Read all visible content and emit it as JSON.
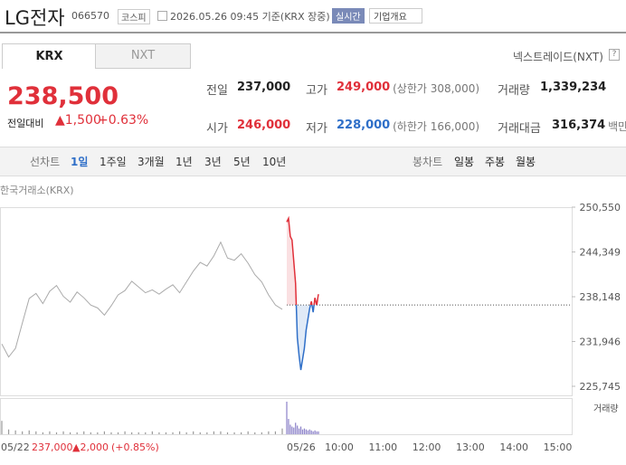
{
  "header": {
    "title": "LG전자",
    "code": "066570",
    "market": "코스피",
    "timestamp": "2026.05.26 09:45 기준(KRX 장중)",
    "realtime": "실시간",
    "company": "기업개요"
  },
  "tabs": [
    "KRX",
    "NXT"
  ],
  "nxt_link": "넥스트레이드(NXT)",
  "quote": {
    "price": "238,500",
    "change_label": "전일대비",
    "change": "▲1,500",
    "change_pct": "+0.63%"
  },
  "stats": [
    {
      "label": "전일",
      "value": "237,000",
      "color": "#222"
    },
    {
      "label": "고가",
      "value": "249,000",
      "note": "(상한가 308,000)",
      "color": "#e0303a"
    },
    {
      "label": "거래량",
      "value": "1,339,234",
      "color": "#222"
    },
    {
      "label": "시가",
      "value": "246,000",
      "color": "#e0303a"
    },
    {
      "label": "저가",
      "value": "228,000",
      "note": "(하한가 166,000)",
      "color": "#2f6fc8"
    },
    {
      "label": "거래대금",
      "value": "316,374",
      "note": "백만",
      "color": "#222"
    }
  ],
  "periods": {
    "line_label": "선차트",
    "line": [
      "1일",
      "1주일",
      "3개월",
      "1년",
      "3년",
      "5년",
      "10년"
    ],
    "candle_label": "봉차트",
    "candle": [
      "일봉",
      "주봉",
      "월봉"
    ]
  },
  "chart_data": {
    "type": "line",
    "source": "한국거래소(KRX)",
    "ylim": [
      225745,
      250550
    ],
    "yticks": [
      {
        "value": 250550,
        "label": "250,550"
      },
      {
        "value": 244349,
        "label": "244,349"
      },
      {
        "value": 238148,
        "label": "238,148"
      },
      {
        "value": 231946,
        "label": "231,946"
      },
      {
        "value": 225745,
        "label": "225,745"
      }
    ],
    "baseline": 237000,
    "series": [
      {
        "name": "05/22",
        "color": "#aaaaaa",
        "values": [
          231600,
          229800,
          231000,
          234500,
          237900,
          238600,
          237200,
          238900,
          239700,
          238200,
          237400,
          238800,
          238000,
          237000,
          236600,
          235600,
          236900,
          238400,
          239000,
          240300,
          239500,
          238700,
          239100,
          238500,
          239200,
          239800,
          238700,
          240200,
          241700,
          242900,
          242400,
          243800,
          245700,
          243500,
          243200,
          244100,
          242800,
          241200,
          240200,
          238400,
          237000,
          236400
        ],
        "volume": [
          14,
          5,
          4,
          3,
          4,
          3,
          2,
          3,
          2,
          3,
          2,
          2,
          3,
          2,
          2,
          3,
          2,
          2,
          3,
          2,
          2,
          2,
          3,
          2,
          2,
          2,
          3,
          2,
          3,
          2,
          2,
          3,
          3,
          2,
          2,
          2,
          3,
          2,
          2,
          3,
          3,
          6
        ]
      },
      {
        "name": "05/26",
        "color": "#e0303a",
        "color_down": "#2f6fc8",
        "values": [
          248500,
          249000,
          246500,
          246000,
          243000,
          240000,
          232500,
          230000,
          228000,
          229500,
          231000,
          233500,
          235000,
          236500,
          237500,
          236000,
          238000,
          237000,
          238500
        ],
        "volume": [
          34,
          16,
          10,
          8,
          7,
          12,
          9,
          6,
          8,
          5,
          6,
          5,
          4,
          5,
          4,
          3,
          4,
          3,
          3
        ]
      }
    ],
    "prev_summary": {
      "close": "237,000",
      "change": "▲2,000",
      "pct": "(+0.85%)"
    },
    "x_labels": [
      "10:00",
      "11:00",
      "12:00",
      "13:00",
      "14:00",
      "15:00"
    ],
    "volume_label": "거래량"
  }
}
